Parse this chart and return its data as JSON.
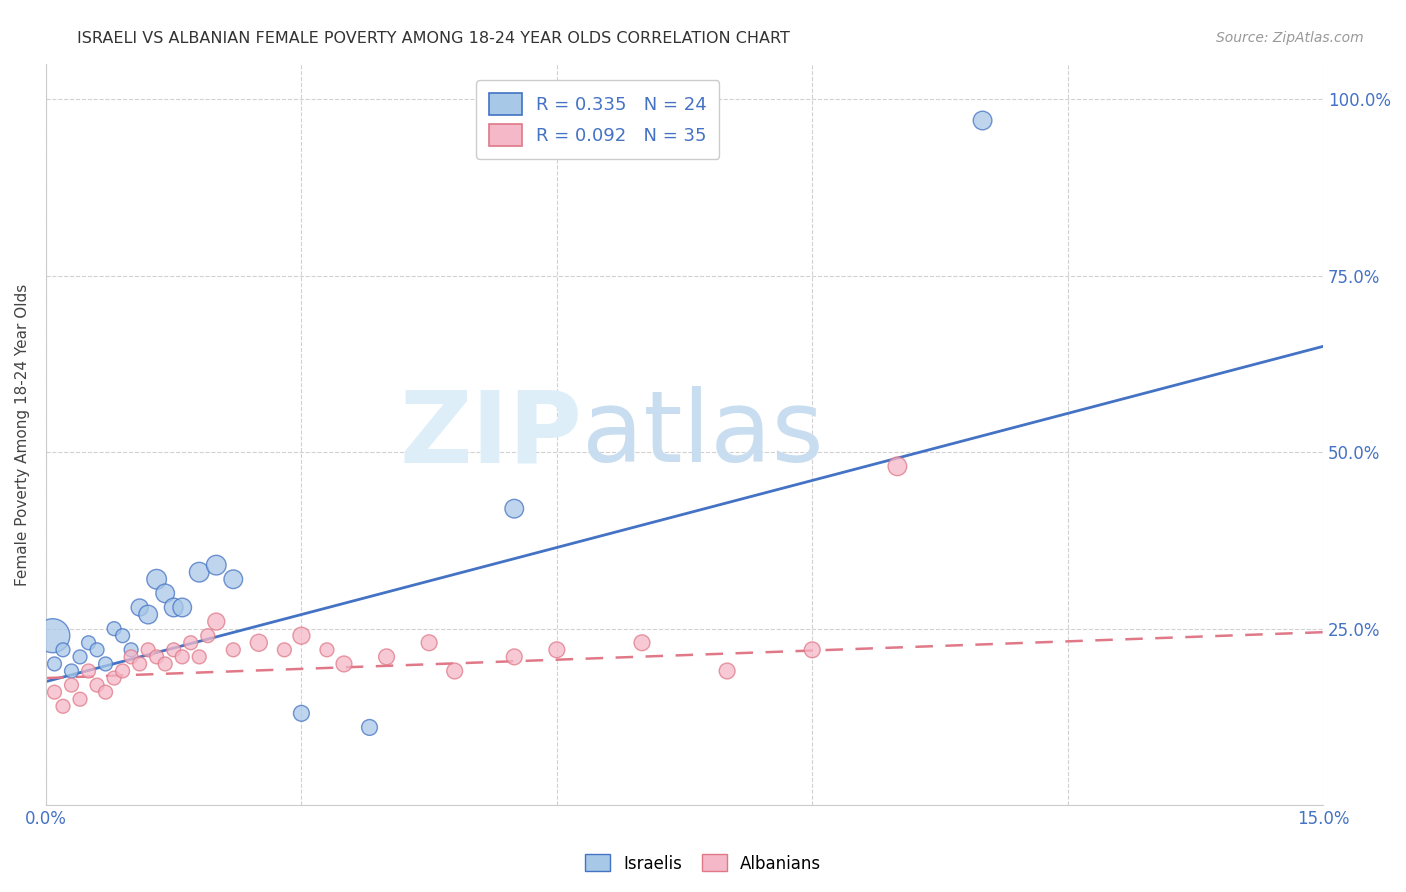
{
  "title": "ISRAELI VS ALBANIAN FEMALE POVERTY AMONG 18-24 YEAR OLDS CORRELATION CHART",
  "source": "Source: ZipAtlas.com",
  "ylabel": "Female Poverty Among 18-24 Year Olds",
  "xlim": [
    0.0,
    0.15
  ],
  "ylim": [
    0.0,
    1.05
  ],
  "x_ticks": [
    0.0,
    0.03,
    0.06,
    0.09,
    0.12,
    0.15
  ],
  "x_tick_labels": [
    "0.0%",
    "",
    "",
    "",
    "",
    "15.0%"
  ],
  "y_tick_labels": [
    "",
    "25.0%",
    "50.0%",
    "75.0%",
    "100.0%"
  ],
  "y_ticks": [
    0.0,
    0.25,
    0.5,
    0.75,
    1.0
  ],
  "israeli_color": "#a8c8e8",
  "albanian_color": "#f4b8c8",
  "israeli_line_color": "#4472c4",
  "albanian_line_color": "#e07888",
  "watermark_zip": "ZIP",
  "watermark_atlas": "atlas",
  "legend_R_israeli": "R = 0.335",
  "legend_N_israeli": "N = 24",
  "legend_R_albanian": "R = 0.092",
  "legend_N_albanian": "N = 35",
  "israeli_line_x0": 0.0,
  "israeli_line_y0": 0.175,
  "israeli_line_x1": 0.15,
  "israeli_line_y1": 0.65,
  "albanian_line_x0": 0.0,
  "albanian_line_y0": 0.18,
  "albanian_line_x1": 0.15,
  "albanian_line_y1": 0.245,
  "israeli_x": [
    0.0008,
    0.001,
    0.002,
    0.003,
    0.004,
    0.005,
    0.006,
    0.007,
    0.008,
    0.009,
    0.01,
    0.011,
    0.012,
    0.013,
    0.014,
    0.015,
    0.016,
    0.018,
    0.02,
    0.022,
    0.03,
    0.038,
    0.055,
    0.11
  ],
  "israeli_y": [
    0.24,
    0.2,
    0.22,
    0.19,
    0.21,
    0.23,
    0.22,
    0.2,
    0.25,
    0.24,
    0.22,
    0.28,
    0.27,
    0.32,
    0.3,
    0.28,
    0.28,
    0.33,
    0.34,
    0.32,
    0.13,
    0.11,
    0.42,
    0.97
  ],
  "israeli_sizes": [
    600,
    100,
    100,
    100,
    100,
    100,
    100,
    100,
    100,
    100,
    100,
    150,
    180,
    200,
    180,
    180,
    180,
    200,
    200,
    180,
    130,
    130,
    180,
    180
  ],
  "albanian_x": [
    0.001,
    0.002,
    0.003,
    0.004,
    0.005,
    0.006,
    0.007,
    0.008,
    0.009,
    0.01,
    0.011,
    0.012,
    0.013,
    0.014,
    0.015,
    0.016,
    0.017,
    0.018,
    0.019,
    0.02,
    0.022,
    0.025,
    0.028,
    0.03,
    0.033,
    0.035,
    0.04,
    0.045,
    0.048,
    0.055,
    0.06,
    0.07,
    0.08,
    0.09,
    0.1
  ],
  "albanian_y": [
    0.16,
    0.14,
    0.17,
    0.15,
    0.19,
    0.17,
    0.16,
    0.18,
    0.19,
    0.21,
    0.2,
    0.22,
    0.21,
    0.2,
    0.22,
    0.21,
    0.23,
    0.21,
    0.24,
    0.26,
    0.22,
    0.23,
    0.22,
    0.24,
    0.22,
    0.2,
    0.21,
    0.23,
    0.19,
    0.21,
    0.22,
    0.23,
    0.19,
    0.22,
    0.48
  ],
  "albanian_sizes": [
    100,
    100,
    100,
    100,
    100,
    100,
    100,
    100,
    100,
    100,
    100,
    100,
    100,
    100,
    100,
    100,
    100,
    100,
    100,
    150,
    100,
    150,
    100,
    150,
    100,
    130,
    130,
    130,
    130,
    130,
    130,
    130,
    130,
    130,
    180
  ]
}
